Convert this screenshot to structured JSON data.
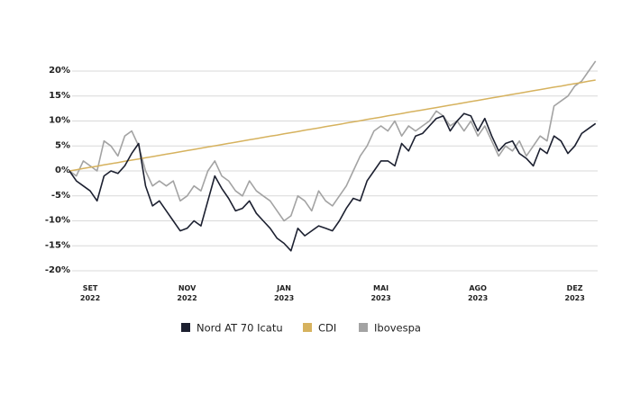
{
  "chart_data": {
    "type": "line",
    "categories": [
      null,
      null,
      null,
      "SET 2022",
      null,
      null,
      null,
      null,
      null,
      null,
      null,
      null,
      null,
      null,
      null,
      null,
      null,
      "NOV 2022",
      null,
      null,
      null,
      null,
      null,
      null,
      null,
      null,
      null,
      null,
      null,
      null,
      null,
      "JAN 2023",
      null,
      null,
      null,
      null,
      null,
      null,
      null,
      null,
      null,
      null,
      null,
      null,
      null,
      "MAI 2023",
      null,
      null,
      null,
      null,
      null,
      null,
      null,
      null,
      null,
      null,
      null,
      null,
      null,
      "AGO 2023",
      null,
      null,
      null,
      null,
      null,
      null,
      null,
      null,
      null,
      null,
      null,
      null,
      null,
      "DEZ 2023",
      null,
      null,
      null
    ],
    "series": [
      {
        "name": "Nord AT 70 Icatu",
        "color": "#1c2030",
        "values": [
          0,
          -2,
          -3,
          -4,
          -6,
          -1,
          0,
          -0.5,
          1,
          3.5,
          5.5,
          -3,
          -7,
          -6,
          -8,
          -10,
          -12,
          -11.5,
          -10,
          -11,
          -6,
          -1,
          -3.5,
          -5.5,
          -8,
          -7.5,
          -6,
          -8.5,
          -10,
          -11.5,
          -13.5,
          -14.5,
          -16,
          -11.5,
          -13,
          -12,
          -11,
          -11.5,
          -12,
          -10,
          -7.5,
          -5.5,
          -6,
          -2,
          0,
          2,
          2,
          1,
          5.5,
          4,
          7,
          7.5,
          9,
          10.5,
          11,
          8,
          10,
          11.5,
          11,
          8,
          10.5,
          7,
          4,
          5.5,
          6,
          3.5,
          2.5,
          1,
          4.5,
          3.5,
          7,
          6,
          3.5,
          5,
          7.5,
          8.5,
          9.5
        ]
      },
      {
        "name": "CDI",
        "color": "#d6b25e",
        "values": [
          0,
          0.24,
          0.48,
          0.72,
          0.96,
          1.2,
          1.44,
          1.68,
          1.92,
          2.16,
          2.39,
          2.63,
          2.87,
          3.11,
          3.35,
          3.59,
          3.83,
          4.07,
          4.31,
          4.55,
          4.79,
          5.03,
          5.27,
          5.51,
          5.75,
          5.99,
          6.23,
          6.47,
          6.71,
          6.95,
          7.18,
          7.42,
          7.66,
          7.9,
          8.14,
          8.38,
          8.62,
          8.86,
          9.1,
          9.34,
          9.58,
          9.82,
          10.06,
          10.3,
          10.54,
          10.78,
          11.02,
          11.26,
          11.5,
          11.74,
          11.98,
          12.21,
          12.45,
          12.69,
          12.93,
          13.17,
          13.41,
          13.65,
          13.89,
          14.13,
          14.37,
          14.61,
          14.85,
          15.09,
          15.33,
          15.57,
          15.81,
          16.05,
          16.29,
          16.53,
          16.77,
          17,
          17.24,
          17.48,
          17.72,
          17.96,
          18.2
        ]
      },
      {
        "name": "Ibovespa",
        "color": "#a3a3a3",
        "values": [
          0,
          -1,
          2,
          1,
          0,
          6,
          5,
          3,
          7,
          8,
          5,
          0,
          -3,
          -2,
          -3,
          -2,
          -6,
          -5,
          -3,
          -4,
          0,
          2,
          -1,
          -2,
          -4,
          -5,
          -2,
          -4,
          -5,
          -6,
          -8,
          -10,
          -9,
          -5,
          -6,
          -8,
          -4,
          -6,
          -7,
          -5,
          -3,
          0,
          3,
          5,
          8,
          9,
          8,
          10,
          7,
          9,
          8,
          9,
          10,
          12,
          11,
          9,
          10,
          8,
          10,
          7,
          9,
          6,
          3,
          5,
          4,
          6,
          3,
          5,
          7,
          6,
          13,
          14,
          15,
          17,
          18,
          20,
          22
        ]
      }
    ],
    "ylim": [
      -20,
      25
    ],
    "yticks": [
      {
        "value": -20,
        "label": "-20%"
      },
      {
        "value": -15,
        "label": "-15%"
      },
      {
        "value": -10,
        "label": "-10%"
      },
      {
        "value": -5,
        "label": "-5%"
      },
      {
        "value": 0,
        "label": "0%"
      },
      {
        "value": 5,
        "label": "5%"
      },
      {
        "value": 10,
        "label": "10%"
      },
      {
        "value": 15,
        "label": "15%"
      },
      {
        "value": 20,
        "label": "20%"
      }
    ],
    "grid": true
  }
}
